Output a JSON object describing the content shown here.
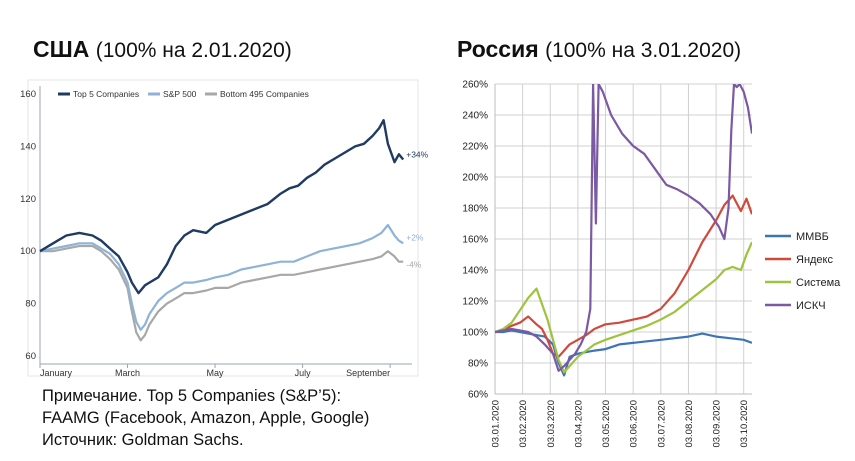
{
  "us": {
    "title": "США",
    "subtitle": "(100% на 2.01.2020)"
  },
  "ru": {
    "title": "Россия",
    "subtitle": "(100% на 3.01.2020)"
  },
  "notes": {
    "line1": "Примечание. Top 5 Companies (S&P’5):",
    "line2": "FAAMG (Facebook, Amazon, Apple, Google)",
    "line3": "Источник: Goldman Sachs."
  },
  "colors": {
    "top5": "#1f3b63",
    "sp500": "#8fb2d9",
    "bottom495": "#a8a8a8",
    "mmvb": "#3d74b6",
    "yandex": "#cf4a3c",
    "sistema": "#9ec33c",
    "iskch": "#7b59a3"
  },
  "chart_data": [
    {
      "type": "line",
      "x_ticks": [
        "January",
        "March",
        "May",
        "July",
        "September"
      ],
      "y_ticks": [
        "60",
        "80",
        "100",
        "120",
        "140",
        "160"
      ],
      "ylim": [
        60,
        160
      ],
      "x_range_months": [
        0,
        8.5
      ],
      "legend_position": "top",
      "annotations": [
        "+34%",
        "+2%",
        "-4%"
      ],
      "series": [
        {
          "name": "Top 5 Companies",
          "x": [
            0,
            0.3,
            0.6,
            0.9,
            1.2,
            1.4,
            1.6,
            1.8,
            2.0,
            2.1,
            2.25,
            2.4,
            2.5,
            2.7,
            2.9,
            3.1,
            3.3,
            3.5,
            3.8,
            4.0,
            4.3,
            4.6,
            4.9,
            5.2,
            5.5,
            5.7,
            5.9,
            6.1,
            6.3,
            6.5,
            6.8,
            7.0,
            7.2,
            7.4,
            7.6,
            7.75,
            7.85,
            7.95,
            8.1,
            8.2,
            8.3
          ],
          "values": [
            100,
            103,
            106,
            107,
            106,
            104,
            101,
            98,
            92,
            88,
            84,
            87,
            88,
            90,
            95,
            102,
            106,
            108,
            107,
            110,
            112,
            114,
            116,
            118,
            122,
            124,
            125,
            128,
            130,
            133,
            136,
            138,
            140,
            141,
            144,
            147,
            150,
            141,
            134,
            137,
            135
          ]
        },
        {
          "name": "S&P 500",
          "x": [
            0,
            0.3,
            0.6,
            0.9,
            1.2,
            1.4,
            1.6,
            1.8,
            2.0,
            2.1,
            2.2,
            2.3,
            2.4,
            2.5,
            2.7,
            2.9,
            3.1,
            3.3,
            3.5,
            3.8,
            4.0,
            4.3,
            4.6,
            4.9,
            5.2,
            5.5,
            5.8,
            6.1,
            6.4,
            6.7,
            7.0,
            7.3,
            7.6,
            7.8,
            7.95,
            8.1,
            8.2,
            8.3
          ],
          "values": [
            100,
            101,
            102,
            103,
            103,
            101,
            99,
            95,
            88,
            80,
            73,
            70,
            72,
            76,
            81,
            84,
            86,
            88,
            88,
            89,
            90,
            91,
            93,
            94,
            95,
            96,
            96,
            98,
            100,
            101,
            102,
            103,
            105,
            107,
            110,
            106,
            104,
            103
          ]
        },
        {
          "name": "Bottom 495 Companies",
          "x": [
            0,
            0.3,
            0.6,
            0.9,
            1.2,
            1.4,
            1.6,
            1.8,
            2.0,
            2.1,
            2.2,
            2.3,
            2.4,
            2.5,
            2.7,
            2.9,
            3.1,
            3.3,
            3.5,
            3.8,
            4.0,
            4.3,
            4.6,
            4.9,
            5.2,
            5.5,
            5.8,
            6.1,
            6.4,
            6.7,
            7.0,
            7.3,
            7.6,
            7.8,
            7.95,
            8.1,
            8.2,
            8.3
          ],
          "values": [
            100,
            100,
            101,
            102,
            102,
            100,
            97,
            93,
            86,
            77,
            69,
            66,
            68,
            72,
            77,
            80,
            82,
            84,
            84,
            85,
            86,
            86,
            88,
            89,
            90,
            91,
            91,
            92,
            93,
            94,
            95,
            96,
            97,
            98,
            100,
            98,
            96,
            96
          ]
        }
      ]
    },
    {
      "type": "line",
      "x_ticks": [
        "03.01.2020",
        "03.02.2020",
        "03.03.2020",
        "03.04.2020",
        "03.05.2020",
        "03.06.2020",
        "03.07.2020",
        "03.08.2020",
        "03.09.2020",
        "03.10.2020"
      ],
      "y_ticks": [
        "60%",
        "80%",
        "100%",
        "120%",
        "140%",
        "160%",
        "180%",
        "200%",
        "220%",
        "240%",
        "260%"
      ],
      "ylim": [
        60,
        260
      ],
      "legend_position": "right",
      "series": [
        {
          "name": "ММВБ",
          "x": [
            0,
            0.3,
            0.6,
            0.9,
            1.2,
            1.5,
            1.8,
            2.1,
            2.3,
            2.5,
            2.7,
            3.0,
            3.3,
            3.6,
            4.0,
            4.5,
            5.0,
            5.5,
            6.0,
            6.5,
            7.0,
            7.5,
            8.0,
            8.5,
            9.0,
            9.3
          ],
          "values": [
            100,
            100,
            101,
            100,
            99,
            98,
            97,
            92,
            80,
            72,
            84,
            86,
            87,
            88,
            89,
            92,
            93,
            94,
            95,
            96,
            97,
            99,
            97,
            96,
            95,
            93
          ]
        },
        {
          "name": "Яндекс",
          "x": [
            0,
            0.3,
            0.6,
            0.9,
            1.2,
            1.5,
            1.7,
            1.9,
            2.1,
            2.3,
            2.5,
            2.7,
            3.0,
            3.3,
            3.6,
            4.0,
            4.5,
            5.0,
            5.5,
            6.0,
            6.5,
            7.0,
            7.5,
            8.0,
            8.3,
            8.6,
            8.9,
            9.1,
            9.3
          ],
          "values": [
            100,
            101,
            104,
            106,
            110,
            105,
            102,
            95,
            86,
            84,
            88,
            92,
            95,
            98,
            102,
            105,
            106,
            108,
            110,
            115,
            125,
            140,
            158,
            172,
            182,
            188,
            178,
            186,
            176
          ]
        },
        {
          "name": "Система",
          "x": [
            0,
            0.3,
            0.6,
            0.9,
            1.2,
            1.5,
            1.7,
            1.9,
            2.1,
            2.3,
            2.5,
            2.7,
            3.0,
            3.3,
            3.6,
            4.0,
            4.5,
            5.0,
            5.5,
            6.0,
            6.5,
            7.0,
            7.5,
            8.0,
            8.3,
            8.6,
            8.9,
            9.1,
            9.3
          ],
          "values": [
            100,
            102,
            106,
            114,
            122,
            128,
            118,
            108,
            95,
            82,
            74,
            78,
            84,
            88,
            92,
            95,
            98,
            101,
            104,
            108,
            113,
            120,
            127,
            134,
            140,
            142,
            140,
            150,
            158
          ]
        },
        {
          "name": "ИСКЧ",
          "x": [
            0,
            0.3,
            0.6,
            0.9,
            1.2,
            1.5,
            1.8,
            2.1,
            2.3,
            2.5,
            2.7,
            2.9,
            3.1,
            3.3,
            3.45,
            3.55,
            3.65,
            3.75,
            3.9,
            4.2,
            4.6,
            5.0,
            5.4,
            5.8,
            6.2,
            6.6,
            7.0,
            7.4,
            7.8,
            8.1,
            8.3,
            8.45,
            8.55,
            8.65,
            8.75,
            8.85,
            9.0,
            9.15,
            9.3
          ],
          "values": [
            100,
            101,
            102,
            101,
            100,
            97,
            92,
            86,
            75,
            78,
            82,
            86,
            92,
            100,
            115,
            270,
            170,
            265,
            255,
            240,
            228,
            220,
            215,
            205,
            195,
            192,
            188,
            183,
            176,
            168,
            160,
            180,
            230,
            270,
            258,
            262,
            255,
            245,
            228
          ]
        }
      ]
    }
  ]
}
